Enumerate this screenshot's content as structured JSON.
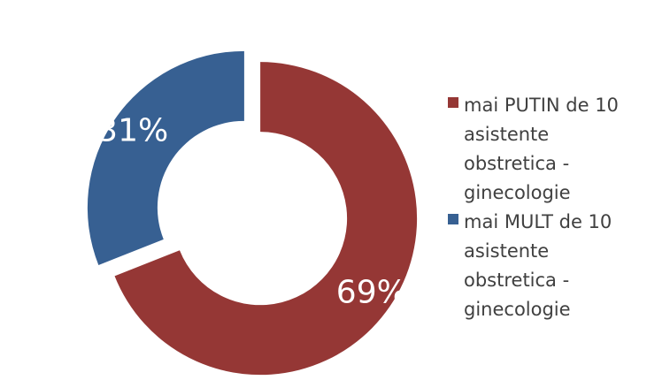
{
  "chart_data": {
    "type": "pie",
    "style": "exploded-doughnut",
    "categories": [
      "mai PUTIN de 10\nasistente\nobstretica -\nginecologie",
      "mai MULT de 10\nasistente\nobstretica -\nginecologie"
    ],
    "values": [
      69,
      31
    ],
    "data_labels": [
      "69%",
      "31%"
    ],
    "colors": [
      "#953735",
      "#376092"
    ],
    "legend_position": "right",
    "title": ""
  }
}
